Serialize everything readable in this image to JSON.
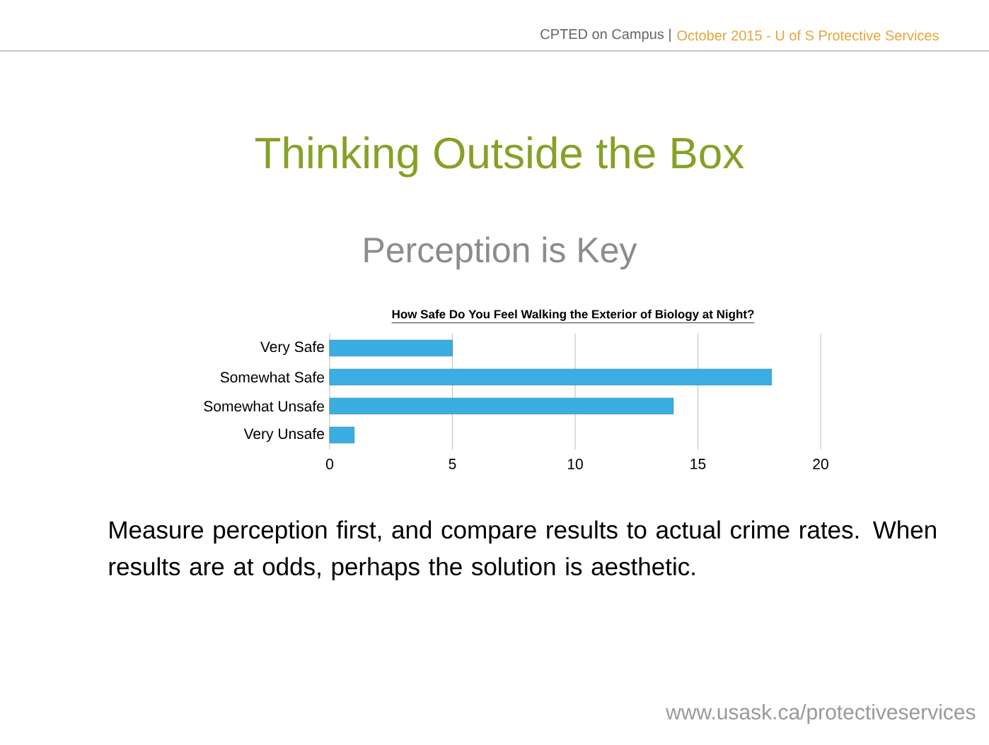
{
  "chart_data": {
    "type": "bar",
    "orientation": "horizontal",
    "title": "Thinking Outside the Box",
    "subtitle": "Perception is Key",
    "annotations": [
      "How Safe Do You Feel Walking the Exterior of Biology at Night?",
      "CPTED on Campus |",
      "October 2015 - U of S Protective Services",
      "Measure perception first, and compare results to actual crime rates. When results are at odds, perhaps the solution is aesthetic.",
      "www.usask.ca/protectiveservices"
    ],
    "categories": [
      "Very Safe",
      "Somewhat Safe",
      "Somewhat Unsafe",
      "Very Unsafe"
    ],
    "values": [
      5,
      18,
      14,
      1
    ],
    "color": "#3aaee3",
    "xlim": [
      0,
      20
    ],
    "xticks": [
      0,
      5,
      10,
      15,
      20
    ],
    "grid": "x"
  }
}
